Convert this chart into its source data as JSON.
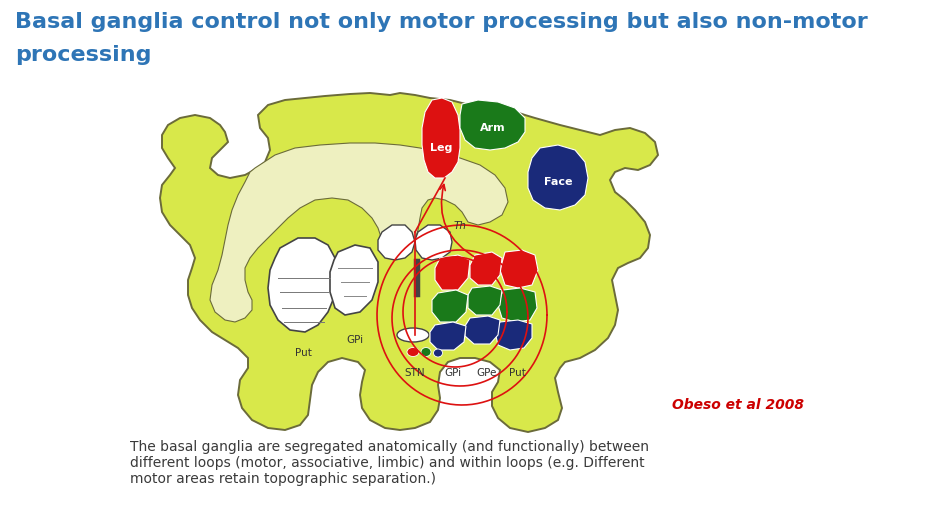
{
  "title_line1": "Basal ganglia control not only motor processing but also non-motor",
  "title_line2": "processing",
  "title_color": "#2E75B6",
  "title_fontsize": 16,
  "caption_line1": "The basal ganglia are segregated anatomically (and functionally) between",
  "caption_line2": "different loops (motor, associative, limbic) and within loops (e.g. Different",
  "caption_line3": "motor areas retain topographic separation.)",
  "caption_color": "#3A3A3A",
  "caption_fontsize": 10,
  "citation": "Obeso et al 2008",
  "citation_color": "#CC0000",
  "citation_fontsize": 10,
  "bg_color": "#FFFFFF",
  "brain_fill": "#D8E84A",
  "brain_edge": "#6B6B3A",
  "inner_fill": "#EEF0C0",
  "white_fill": "#FFFFFF",
  "red_color": "#DD1111",
  "green_color": "#1A7A1A",
  "blue_color": "#1A2A7A",
  "loop_color": "#DD1111",
  "label_color": "#333333",
  "label_fs": 7.5,
  "cortex_label_color": "#FFFFFF",
  "cortex_label_fs": 8
}
